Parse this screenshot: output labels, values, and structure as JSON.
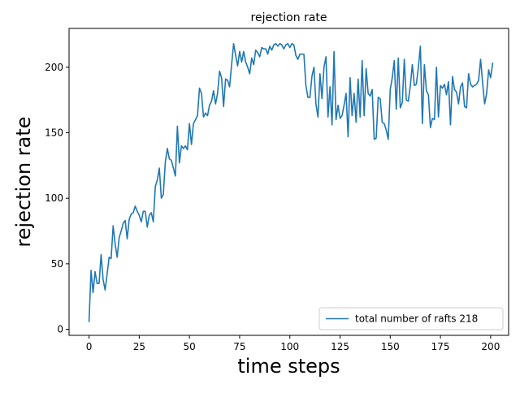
{
  "chart_data": {
    "type": "line",
    "title": "rejection rate",
    "xlabel": "time steps",
    "ylabel": "rejection rate",
    "xlim": [
      -9.95,
      208.95
    ],
    "ylim": [
      -4.6,
      229.6
    ],
    "xticks": [
      0,
      25,
      50,
      75,
      100,
      125,
      150,
      175,
      200
    ],
    "yticks": [
      0,
      50,
      100,
      150,
      200
    ],
    "grid": false,
    "legend_position": "lower right",
    "series": [
      {
        "name": "total number of rafts 218",
        "color": "#1f77b4",
        "values": [
          6,
          45,
          28,
          44,
          35,
          35,
          57,
          38,
          30,
          42,
          55,
          54,
          79,
          65,
          55,
          70,
          75,
          81,
          83,
          69,
          84,
          88,
          89,
          94,
          90,
          87,
          82,
          90,
          90,
          78,
          87,
          89,
          82,
          109,
          114,
          123,
          100,
          103,
          128,
          138,
          130,
          129,
          123,
          117,
          155,
          127,
          140,
          138,
          140,
          137,
          157,
          141,
          157,
          160,
          163,
          184,
          180,
          162,
          165,
          163,
          171,
          174,
          182,
          172,
          180,
          197,
          192,
          170,
          191,
          190,
          185,
          202,
          218,
          209,
          201,
          212,
          204,
          212,
          204,
          200,
          195,
          207,
          202,
          213,
          211,
          208,
          215,
          214,
          214,
          210,
          216,
          213,
          217,
          218,
          216,
          218,
          217,
          214,
          217,
          218,
          215,
          218,
          217,
          209,
          206,
          210,
          210,
          210,
          186,
          177,
          177,
          193,
          200,
          172,
          162,
          195,
          176,
          200,
          208,
          162,
          185,
          156,
          212,
          160,
          171,
          161,
          163,
          171,
          180,
          147,
          192,
          163,
          180,
          158,
          191,
          162,
          205,
          163,
          199,
          180,
          178,
          183,
          145,
          146,
          177,
          176,
          158,
          157,
          152,
          145,
          183,
          192,
          205,
          168,
          207,
          169,
          173,
          206,
          175,
          174,
          186,
          202,
          186,
          187,
          200,
          216,
          157,
          202,
          182,
          179,
          154,
          161,
          160,
          200,
          162,
          186,
          184,
          187,
          179,
          189,
          156,
          193,
          183,
          181,
          172,
          185,
          188,
          170,
          169,
          195,
          187,
          185,
          186,
          187,
          190,
          206,
          188,
          172,
          180,
          198,
          192,
          203
        ]
      }
    ]
  }
}
